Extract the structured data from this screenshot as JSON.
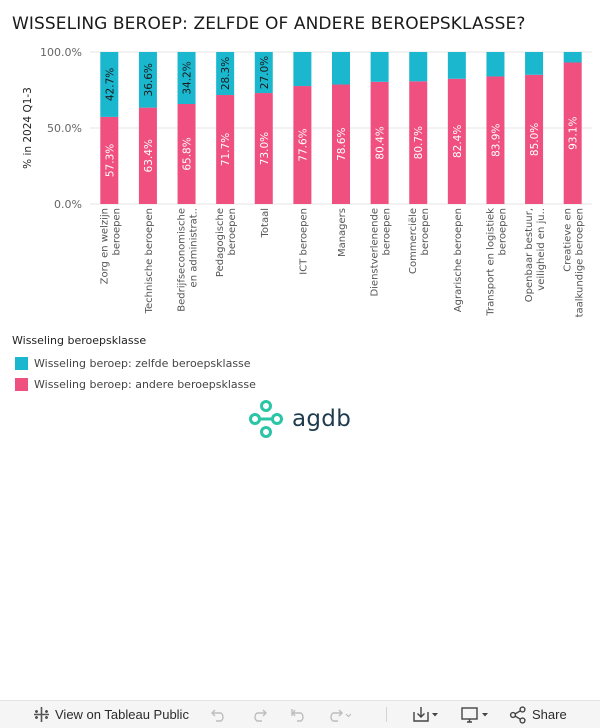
{
  "title": "WISSELING BEROEP: ZELFDE OF ANDERE BEROEPSKLASSE?",
  "chart_data": {
    "type": "bar",
    "stacked": true,
    "percent_stacked": true,
    "ylabel": "% in 2024 Q1-3",
    "ylim": [
      0,
      100
    ],
    "yticks": [
      "100.0%",
      "50.0%",
      "0.0%"
    ],
    "grid": true,
    "categories": [
      [
        "Zorg en welzijn",
        "beroepen"
      ],
      [
        "Technische beroepen"
      ],
      [
        "Bedrijfseconomische",
        "en administrat.."
      ],
      [
        "Pedagogische",
        "beroepen"
      ],
      [
        "Totaal"
      ],
      [
        "ICT beroepen"
      ],
      [
        "Managers"
      ],
      [
        "Dienstverlenende",
        "beroepen"
      ],
      [
        "Commerciële",
        "beroepen"
      ],
      [
        "Agrarische beroepen"
      ],
      [
        "Transport en logistiek",
        "beroepen"
      ],
      [
        "Openbaar bestuur,",
        "veiligheid en ju.."
      ],
      [
        "Creatieve en",
        "taalkundige beroepen"
      ]
    ],
    "series": [
      {
        "name": "Wisseling beroep: andere beroepsklasse",
        "color": "#f0507f",
        "values": [
          57.3,
          63.4,
          65.8,
          71.7,
          73.0,
          77.6,
          78.6,
          80.4,
          80.7,
          82.4,
          83.9,
          85.0,
          93.1
        ],
        "labels": [
          "57.3%",
          "63.4%",
          "65.8%",
          "71.7%",
          "73.0%",
          "77.6%",
          "78.6%",
          "80.4%",
          "80.7%",
          "82.4%",
          "83.9%",
          "85.0%",
          "93.1%"
        ]
      },
      {
        "name": "Wisseling beroep: zelfde beroepsklasse",
        "color": "#1ab7cf",
        "values": [
          42.7,
          36.6,
          34.2,
          28.3,
          27.0,
          22.4,
          21.4,
          19.6,
          19.3,
          17.6,
          16.1,
          15.0,
          6.9
        ],
        "labels": [
          "42.7%",
          "36.6%",
          "34.2%",
          "28.3%",
          "27.0%",
          "",
          "",
          "",
          "",
          "",
          "",
          "",
          ""
        ]
      }
    ]
  },
  "legend": {
    "title": "Wisseling beroepsklasse",
    "items": [
      {
        "label": "Wisseling beroep: zelfde beroepsklasse",
        "color": "#1ab7cf"
      },
      {
        "label": "Wisseling beroep: andere beroepsklasse",
        "color": "#f0507f"
      }
    ]
  },
  "logo": {
    "text": "agdb",
    "color": "#29c5a4"
  },
  "toolbar": {
    "view_label": "View on Tableau Public",
    "share_label": "Share"
  }
}
